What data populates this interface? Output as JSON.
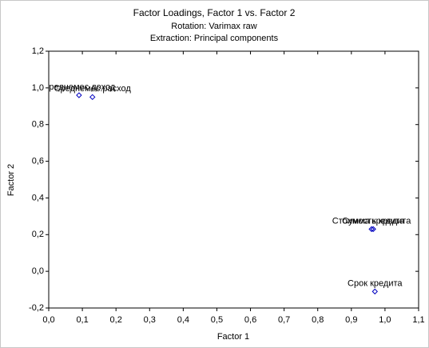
{
  "chart_data": {
    "type": "scatter",
    "title": "Factor Loadings, Factor 1 vs. Factor 2",
    "subtitle": [
      "Rotation: Varimax raw",
      "Extraction: Principal components"
    ],
    "x_label": "Factor 1",
    "y_label": "Factor 2",
    "color": "#0000c0",
    "x": [
      0.09,
      0.13,
      0.96,
      0.965,
      0.97
    ],
    "values": [
      0.96,
      0.95,
      0.23,
      0.23,
      -0.11
    ],
    "labels": [
      "Среднемес.доход",
      "Среднемес.расход",
      "Стоимость кредита",
      "Сумма кредита",
      "Срок кредита"
    ],
    "xlim": [
      0,
      1.1
    ],
    "ylim": [
      -0.2,
      1.2
    ],
    "xticks": [
      {
        "value": 0,
        "label": "0,0"
      },
      {
        "value": 0.1,
        "label": "0,1"
      },
      {
        "value": 0.2,
        "label": "0,2"
      },
      {
        "value": 0.3,
        "label": "0,3"
      },
      {
        "value": 0.4,
        "label": "0,4"
      },
      {
        "value": 0.5,
        "label": "0,5"
      },
      {
        "value": 0.6,
        "label": "0,6"
      },
      {
        "value": 0.7,
        "label": "0,7"
      },
      {
        "value": 0.8,
        "label": "0,8"
      },
      {
        "value": 0.9,
        "label": "0,9"
      },
      {
        "value": 1,
        "label": "1,0"
      },
      {
        "value": 1.1,
        "label": "1,1"
      }
    ],
    "yticks": [
      {
        "value": -0.2,
        "label": "-0,2"
      },
      {
        "value": 0,
        "label": "0,0"
      },
      {
        "value": 0.2,
        "label": "0,2"
      },
      {
        "value": 0.4,
        "label": "0,4"
      },
      {
        "value": 0.6,
        "label": "0,6"
      },
      {
        "value": 0.8,
        "label": "0,8"
      },
      {
        "value": 1,
        "label": "1,0"
      },
      {
        "value": 1.2,
        "label": "1,2"
      }
    ],
    "grid": false
  }
}
